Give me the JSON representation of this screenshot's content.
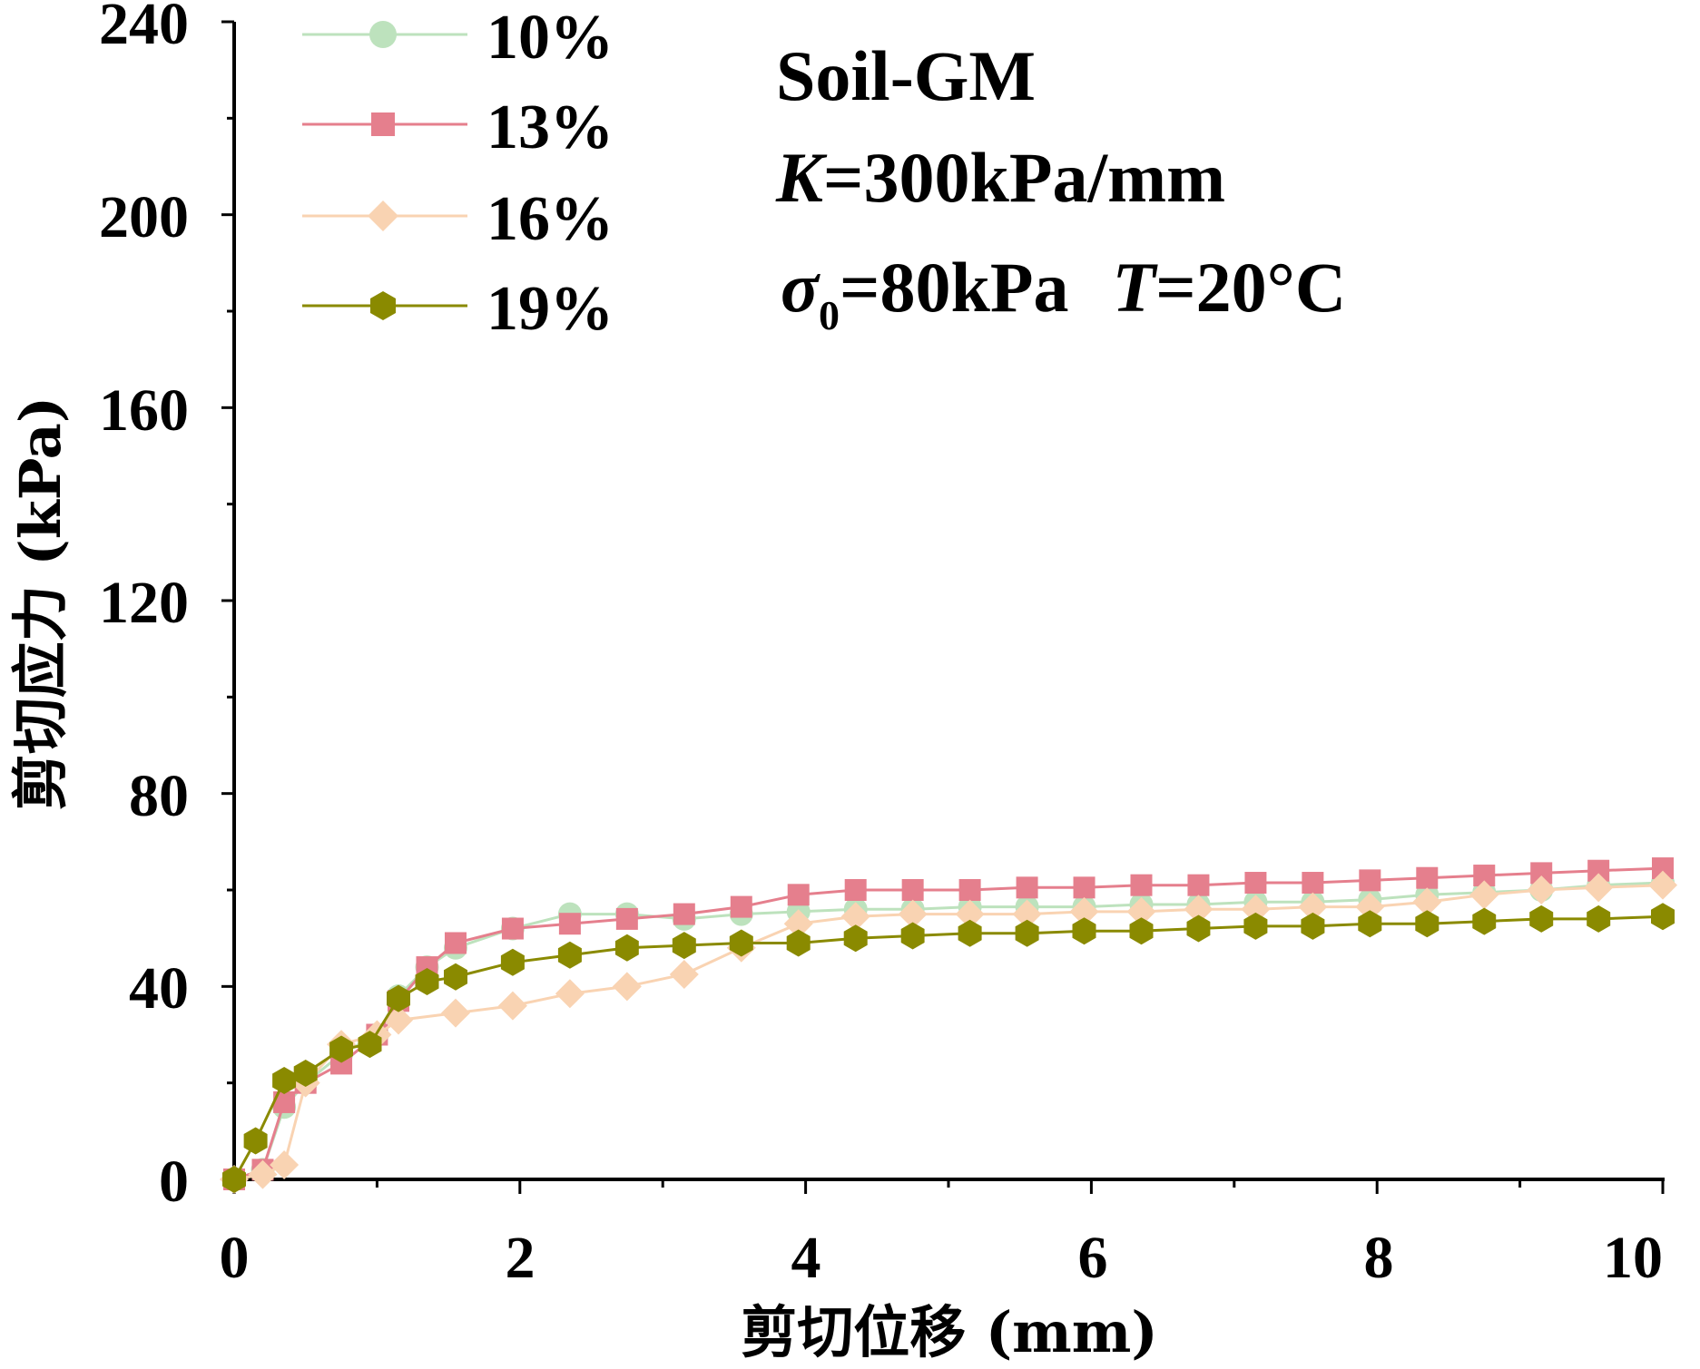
{
  "chart_data": {
    "type": "line",
    "xlabel": "剪切位移 (mm)",
    "ylabel": "剪切应力 (kPa)",
    "xlim": [
      0,
      10
    ],
    "ylim": [
      0,
      240
    ],
    "xticks": [
      "0",
      "2",
      "4",
      "6",
      "8",
      "10"
    ],
    "yticks": [
      "0",
      "40",
      "80",
      "120",
      "160",
      "200",
      "240"
    ],
    "grid": false,
    "legend_position": "top-left",
    "annotations": {
      "line1": "Soil-GM",
      "line2_var": "K",
      "line2_rest": "=300kPa/mm",
      "line3_var": "σ",
      "line3_sub": "0",
      "line3_mid": "=80kPa",
      "line3_var2": "T",
      "line3_rest": "=20°C"
    },
    "series": [
      {
        "name": "10%",
        "color": "#bde2bd",
        "marker": "circle",
        "x": [
          0.0,
          0.2,
          0.35,
          0.5,
          0.75,
          1.0,
          1.15,
          1.35,
          1.55,
          1.95,
          2.35,
          2.75,
          3.15,
          3.55,
          3.95,
          4.35,
          4.75,
          5.15,
          5.55,
          5.95,
          6.35,
          6.75,
          7.15,
          7.55,
          7.95,
          8.35,
          8.75,
          9.15,
          9.55,
          10.0
        ],
        "y": [
          0,
          2,
          15,
          20,
          26,
          30,
          38,
          44,
          48,
          52,
          55,
          55,
          54,
          55,
          55.5,
          56,
          56,
          56.5,
          56.5,
          56.5,
          57,
          57,
          57.5,
          57.5,
          58,
          59,
          59.5,
          60,
          61,
          61.5
        ]
      },
      {
        "name": "13%",
        "color": "#e57f8d",
        "marker": "square",
        "x": [
          0.0,
          0.2,
          0.35,
          0.5,
          0.75,
          1.0,
          1.15,
          1.35,
          1.55,
          1.95,
          2.35,
          2.75,
          3.15,
          3.55,
          3.95,
          4.35,
          4.75,
          5.15,
          5.55,
          5.95,
          6.35,
          6.75,
          7.15,
          7.55,
          7.95,
          8.35,
          8.75,
          9.15,
          9.55,
          10.0
        ],
        "y": [
          0,
          2,
          16,
          20,
          24,
          30,
          37,
          44,
          49,
          52,
          53,
          54,
          55,
          56.5,
          59,
          60,
          60,
          60,
          60.5,
          60.5,
          61,
          61,
          61.5,
          61.5,
          62,
          62.5,
          63,
          63.5,
          64,
          64.5
        ]
      },
      {
        "name": "16%",
        "color": "#f9d3b2",
        "marker": "diamond",
        "x": [
          0.0,
          0.2,
          0.35,
          0.5,
          0.75,
          1.0,
          1.15,
          1.55,
          1.95,
          2.35,
          2.75,
          3.15,
          3.55,
          3.95,
          4.35,
          4.75,
          5.15,
          5.55,
          5.95,
          6.35,
          6.75,
          7.15,
          7.55,
          7.95,
          8.35,
          8.75,
          9.15,
          9.55,
          10.0
        ],
        "y": [
          0,
          1,
          3,
          20,
          28,
          30,
          33,
          34.5,
          36,
          38.5,
          40,
          42.5,
          48,
          53,
          54.5,
          55,
          55,
          55,
          55.5,
          55.5,
          56,
          56,
          56.5,
          56.5,
          57.5,
          59,
          60,
          60.5,
          61
        ]
      },
      {
        "name": "19%",
        "color": "#8a8a00",
        "marker": "hexagon",
        "x": [
          0.0,
          0.15,
          0.35,
          0.5,
          0.75,
          0.95,
          1.15,
          1.35,
          1.55,
          1.95,
          2.35,
          2.75,
          3.15,
          3.55,
          3.95,
          4.35,
          4.75,
          5.15,
          5.55,
          5.95,
          6.35,
          6.75,
          7.15,
          7.55,
          7.95,
          8.35,
          8.75,
          9.15,
          9.55,
          10.0
        ],
        "y": [
          0,
          8,
          20.5,
          22,
          27,
          28,
          37.5,
          41,
          42,
          45,
          46.5,
          48,
          48.5,
          49,
          49,
          50,
          50.5,
          51,
          51,
          51.5,
          51.5,
          52,
          52.5,
          52.5,
          53,
          53,
          53.5,
          54,
          54,
          54.5
        ]
      }
    ]
  }
}
